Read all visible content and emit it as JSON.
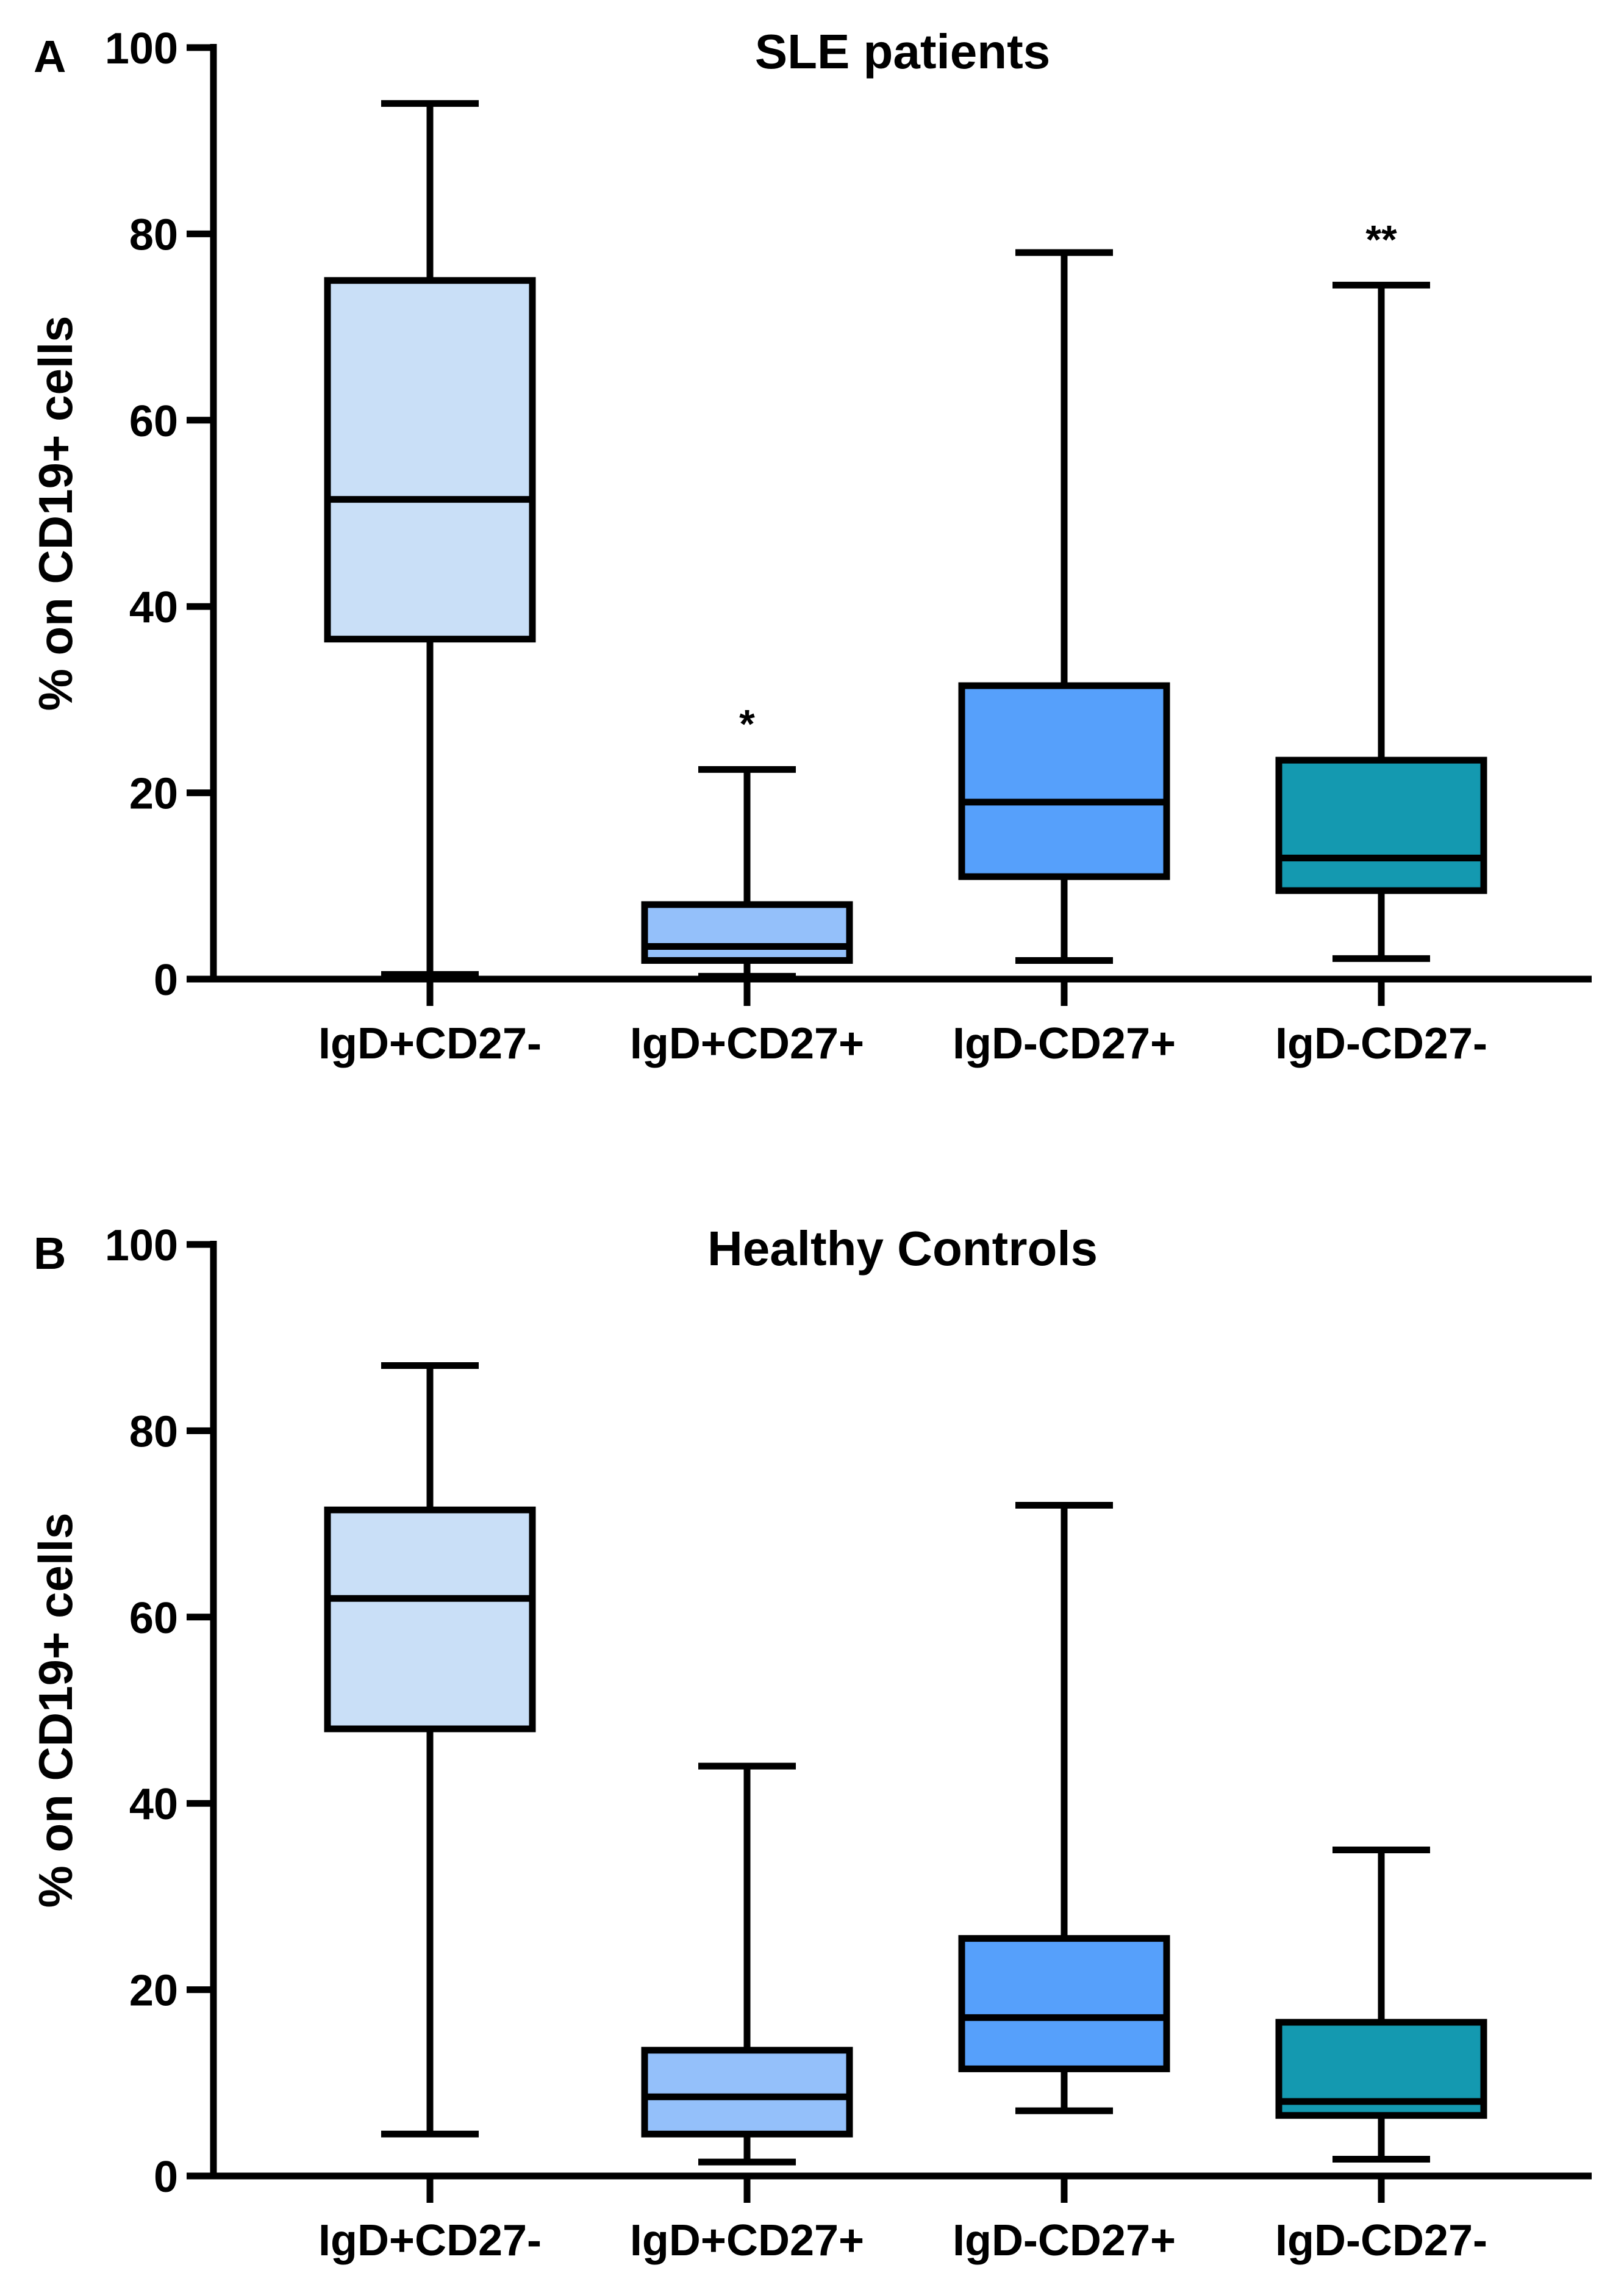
{
  "chart_data": [
    {
      "type": "box",
      "panel_letter": "A",
      "title": "SLE patients",
      "xlabel": "",
      "ylabel": "% on CD19+ cells",
      "ylim": [
        0,
        100
      ],
      "yticks": [
        0,
        20,
        40,
        60,
        80,
        100
      ],
      "grid": false,
      "categories": [
        "IgD+CD27-",
        "IgD+CD27+",
        "IgD-CD27+",
        "IgD-CD27-"
      ],
      "colors": [
        "#c9dff7",
        "#94c0fa",
        "#56a0fb",
        "#1499b0"
      ],
      "boxes": [
        {
          "min": 0.5,
          "q1": 36.5,
          "median": 51.5,
          "q3": 75,
          "max": 94,
          "annotation": ""
        },
        {
          "min": 0.3,
          "q1": 2,
          "median": 3.5,
          "q3": 8,
          "max": 22.5,
          "annotation": "*"
        },
        {
          "min": 2,
          "q1": 11,
          "median": 19,
          "q3": 31.5,
          "max": 78,
          "annotation": ""
        },
        {
          "min": 2.2,
          "q1": 9.5,
          "median": 13,
          "q3": 23.5,
          "max": 74.5,
          "annotation": "**"
        }
      ]
    },
    {
      "type": "box",
      "panel_letter": "B",
      "title": "Healthy Controls",
      "xlabel": "",
      "ylabel": "% on CD19+ cells",
      "ylim": [
        0,
        100
      ],
      "yticks": [
        0,
        20,
        40,
        60,
        80,
        100
      ],
      "grid": false,
      "categories": [
        "IgD+CD27-",
        "IgD+CD27+",
        "IgD-CD27+",
        "IgD-CD27-"
      ],
      "colors": [
        "#c9dff7",
        "#94c0fa",
        "#56a0fb",
        "#1499b0"
      ],
      "boxes": [
        {
          "min": 4.5,
          "q1": 48,
          "median": 62,
          "q3": 71.5,
          "max": 87,
          "annotation": ""
        },
        {
          "min": 1.5,
          "q1": 4.5,
          "median": 8.5,
          "q3": 13.5,
          "max": 44,
          "annotation": ""
        },
        {
          "min": 7,
          "q1": 11.5,
          "median": 17,
          "q3": 25.5,
          "max": 72,
          "annotation": ""
        },
        {
          "min": 1.8,
          "q1": 6.5,
          "median": 8,
          "q3": 16.5,
          "max": 35,
          "annotation": ""
        }
      ]
    }
  ]
}
